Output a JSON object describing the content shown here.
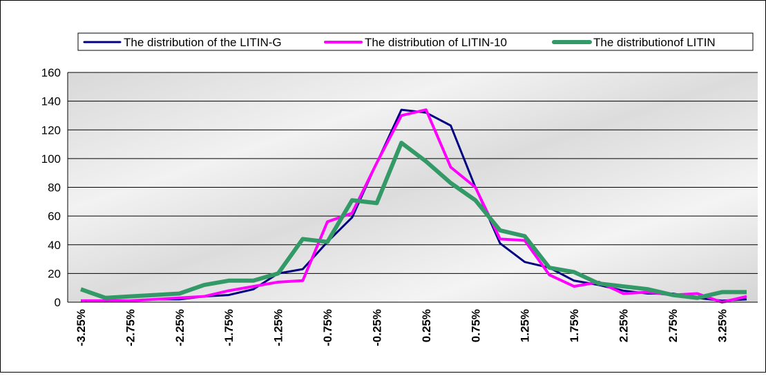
{
  "chart_data": {
    "type": "line",
    "categories": [
      "-3.25%",
      null,
      "-2.75%",
      null,
      "-2.25%",
      null,
      "-1.75%",
      null,
      "-1.25%",
      null,
      "-0.75%",
      null,
      "-0.25%",
      null,
      "0.25%",
      null,
      "0.75%",
      null,
      "1.25%",
      null,
      "1.75%",
      null,
      "2.25%",
      null,
      "2.75%",
      null,
      "3.25%",
      null
    ],
    "series": [
      {
        "name": "The distribution of the LITIN-G",
        "color": "#000080",
        "width": 3,
        "values": [
          1,
          1,
          1,
          2,
          2,
          4,
          5,
          9,
          20,
          23,
          42,
          59,
          97,
          134,
          132,
          123,
          80,
          41,
          28,
          24,
          15,
          12,
          8,
          6,
          6,
          3,
          1,
          2
        ]
      },
      {
        "name": "The distribution of LITIN-10",
        "color": "#ff00ff",
        "width": 4,
        "values": [
          1,
          1,
          1,
          2,
          3,
          4,
          8,
          11,
          14,
          15,
          56,
          62,
          97,
          130,
          134,
          94,
          80,
          44,
          43,
          19,
          11,
          14,
          6,
          7,
          5,
          6,
          0,
          4
        ]
      },
      {
        "name": "The distributionof LITIN",
        "color": "#339966",
        "width": 6,
        "values": [
          9,
          3,
          4,
          5,
          6,
          12,
          15,
          15,
          20,
          44,
          42,
          71,
          69,
          111,
          98,
          83,
          71,
          50,
          46,
          24,
          21,
          13,
          11,
          9,
          5,
          3,
          7,
          7
        ]
      }
    ],
    "ylim": [
      0,
      160
    ],
    "yticks": [
      0,
      20,
      40,
      60,
      80,
      100,
      120,
      140,
      160
    ],
    "grid": true,
    "legend": "top"
  }
}
